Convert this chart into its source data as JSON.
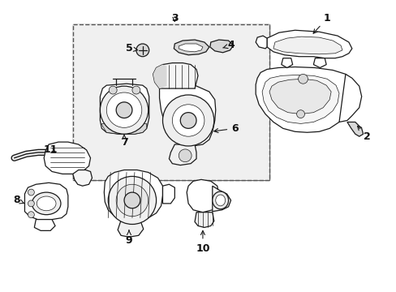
{
  "background_color": "#ffffff",
  "line_color": "#1a1a1a",
  "box_fill": "#f0f0f0",
  "part_fill": "#ffffff",
  "shade_fill": "#d8d8d8",
  "lw": 0.9,
  "lw_thin": 0.5,
  "lw_thick": 1.3
}
